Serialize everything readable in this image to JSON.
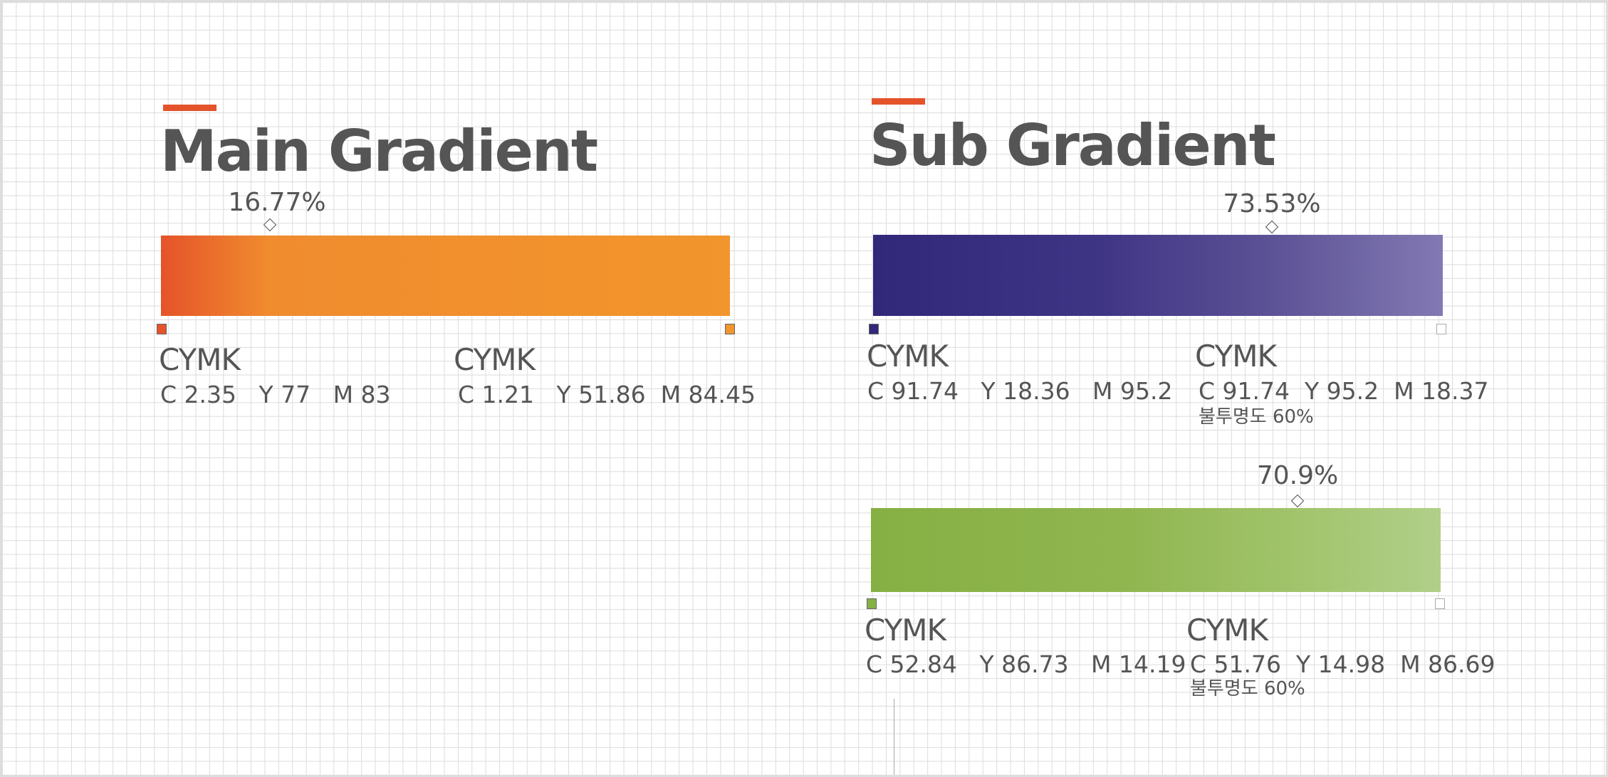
{
  "main": {
    "title": "Main Gradient",
    "gradient": {
      "midpoint": "16.77%",
      "stops": [
        {
          "label": "CYMK",
          "values": "C 2.35   Y 77   M 83"
        },
        {
          "label": "CYMK",
          "values": "C 1.21   Y 51.86  M 84.45"
        }
      ]
    }
  },
  "sub": {
    "title": "Sub Gradient",
    "gradients": [
      {
        "midpoint": "73.53%",
        "stops": [
          {
            "label": "CYMK",
            "values": "C 91.74   Y 18.36   M 95.2"
          },
          {
            "label": "CYMK",
            "values": "C 91.74  Y 95.2  M 18.37",
            "note": "불투명도 60%"
          }
        ]
      },
      {
        "midpoint": "70.9%",
        "stops": [
          {
            "label": "CYMK",
            "values": "C 52.84   Y 86.73   M 14.19"
          },
          {
            "label": "CYMK",
            "values": "C 51.76  Y 14.98  M 86.69",
            "note": "불투명도 60%"
          }
        ]
      }
    ]
  }
}
